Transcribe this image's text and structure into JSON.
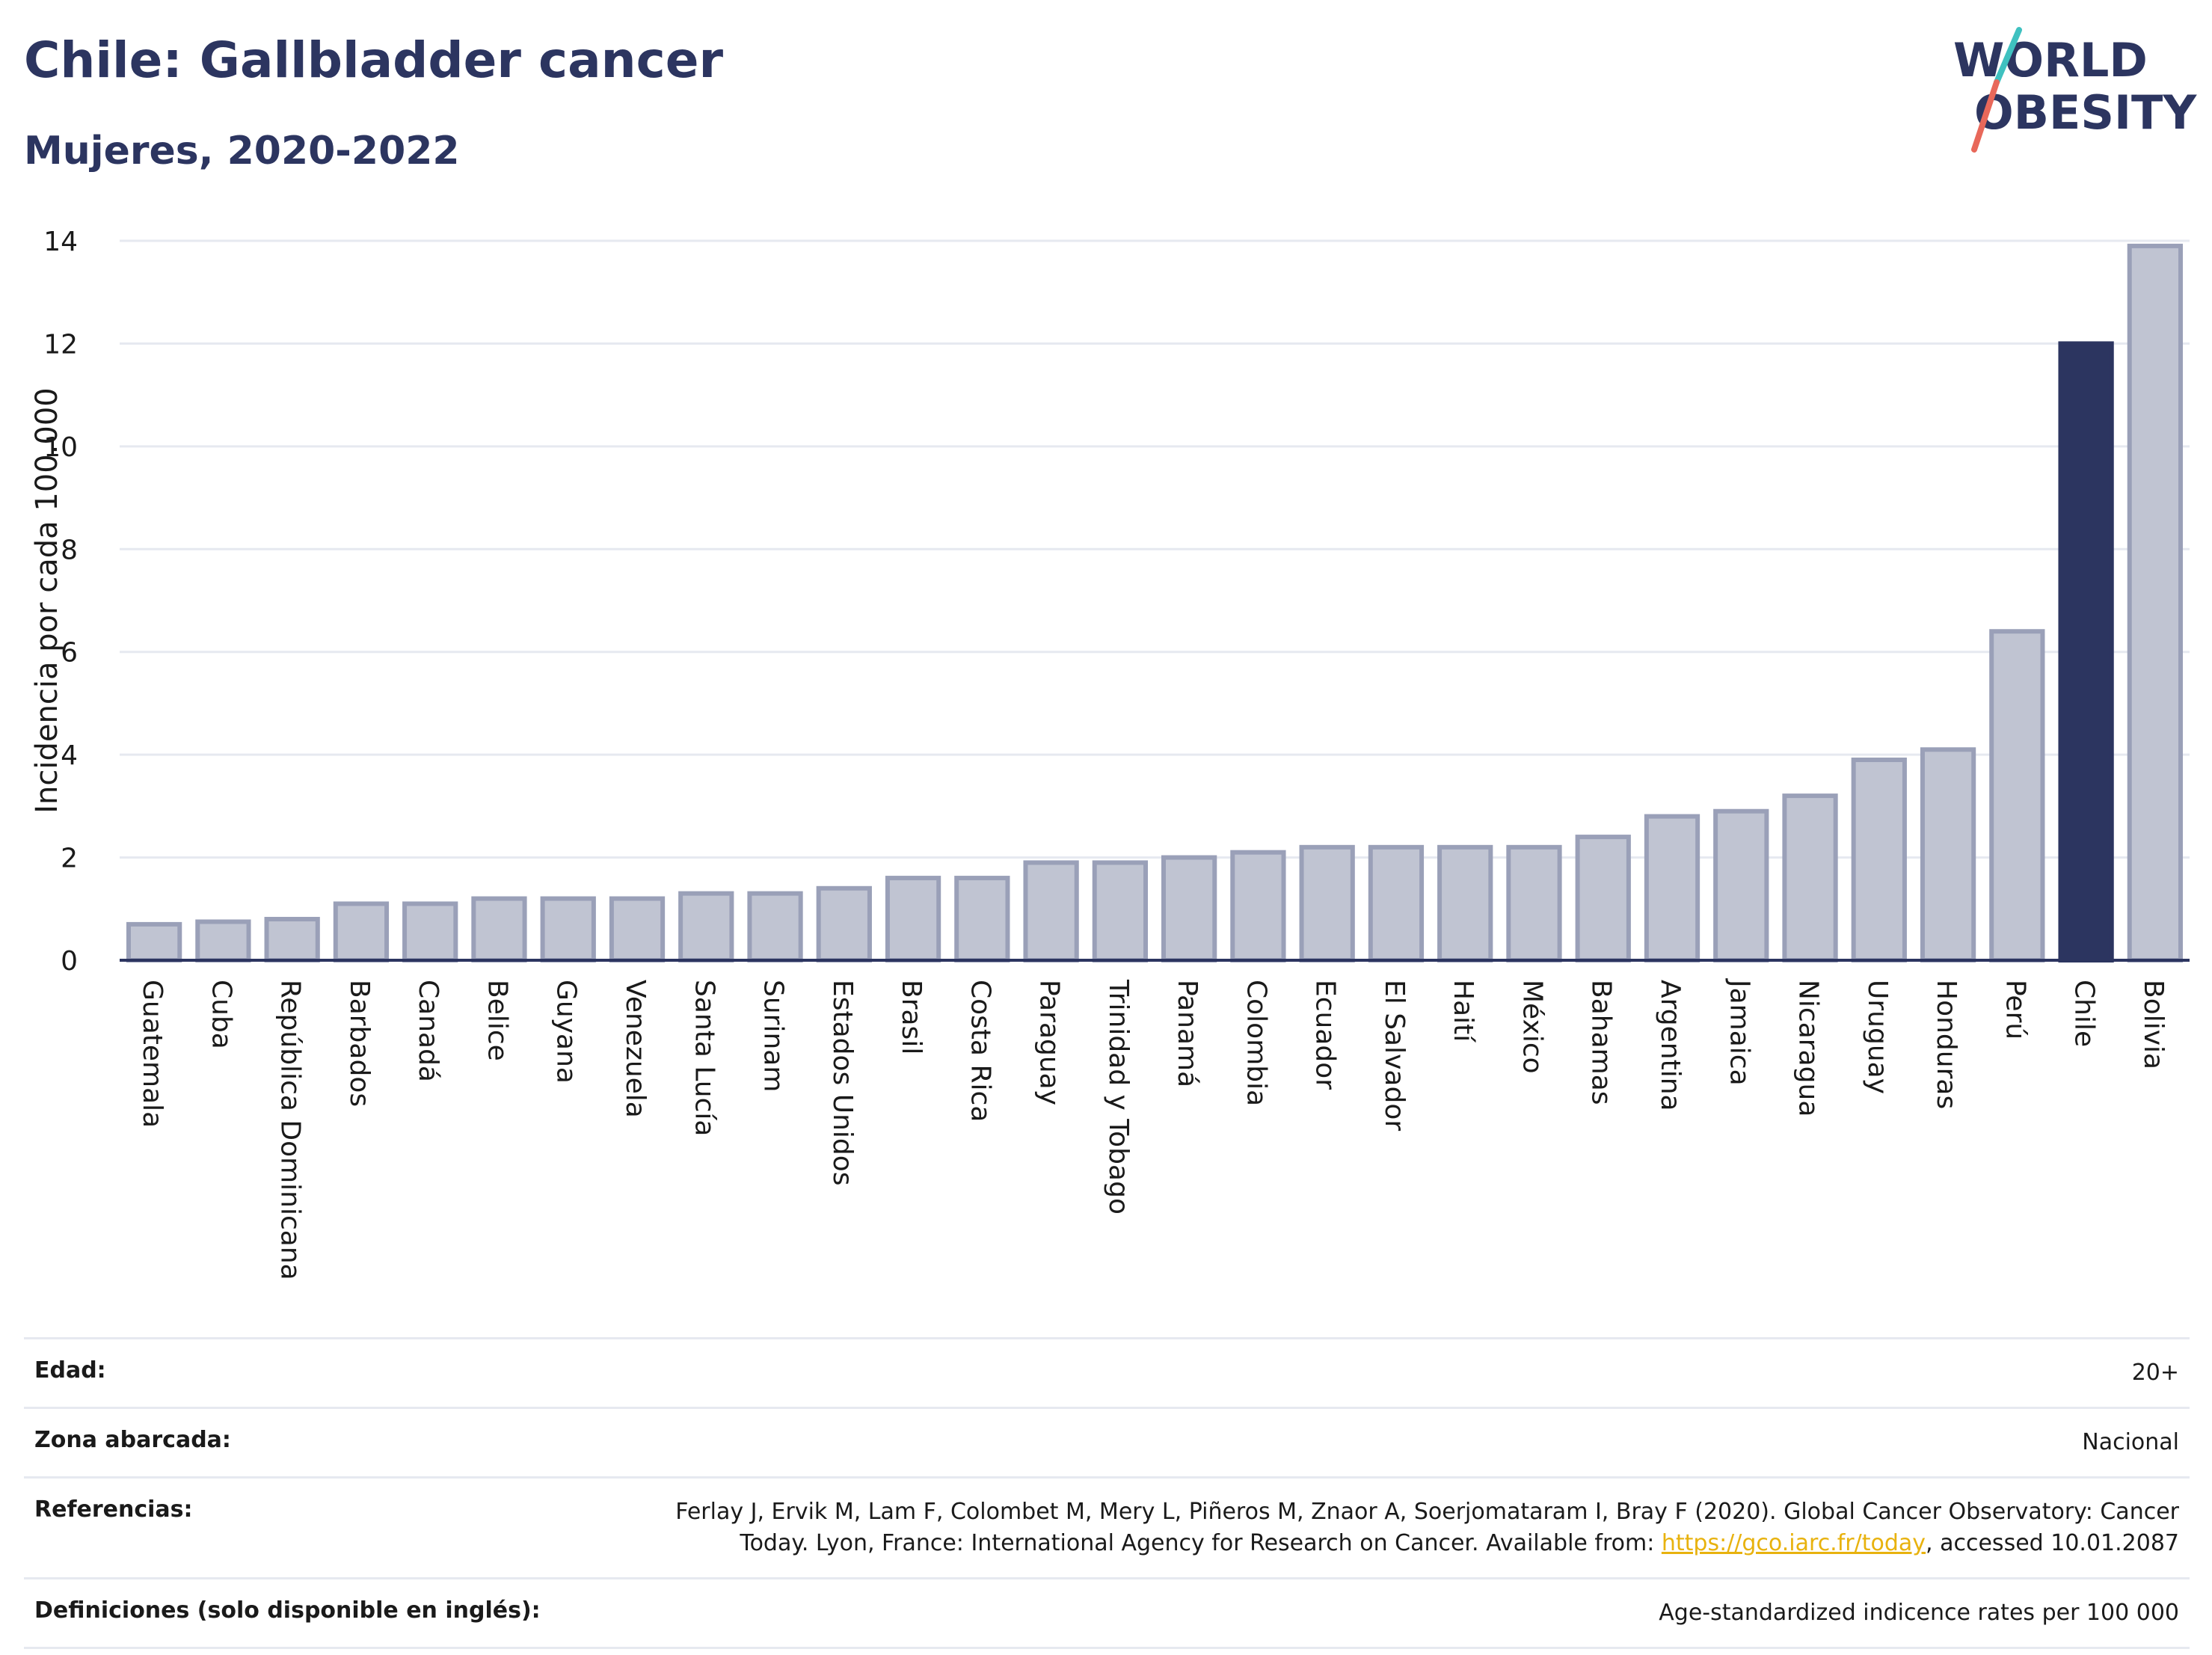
{
  "header": {
    "title": "Chile: Gallbladder cancer",
    "subtitle": "Mujeres, 2020-2022"
  },
  "logo": {
    "line1": "WORLD",
    "line2": "OBESITY",
    "slash_colors": [
      "#3fc1c0",
      "#e8685a"
    ]
  },
  "chart_data": {
    "type": "bar",
    "title": "",
    "ylabel": "Incidencia por cada 100.000",
    "xlabel": "",
    "ylim": [
      0,
      14
    ],
    "yticks": [
      0,
      2,
      4,
      6,
      8,
      10,
      12,
      14
    ],
    "grid": true,
    "categories": [
      "Guatemala",
      "Cuba",
      "República Dominicana",
      "Barbados",
      "Canadá",
      "Belice",
      "Guyana",
      "Venezuela",
      "Santa Lucía",
      "Surinam",
      "Estados Unidos",
      "Brasil",
      "Costa Rica",
      "Paraguay",
      "Trinidad y Tobago",
      "Panamá",
      "Colombia",
      "Ecuador",
      "El Salvador",
      "Haití",
      "México",
      "Bahamas",
      "Argentina",
      "Jamaica",
      "Nicaragua",
      "Uruguay",
      "Honduras",
      "Perú",
      "Chile",
      "Bolivia"
    ],
    "values": [
      0.7,
      0.75,
      0.8,
      1.1,
      1.1,
      1.2,
      1.2,
      1.2,
      1.3,
      1.3,
      1.4,
      1.6,
      1.6,
      1.9,
      1.9,
      2.0,
      2.1,
      2.2,
      2.2,
      2.2,
      2.2,
      2.4,
      2.8,
      2.9,
      3.2,
      3.9,
      4.1,
      6.4,
      12.0,
      13.9
    ],
    "highlight": "Chile",
    "colors": {
      "bar": "#c0c4d2",
      "bar_border": "#9aa0b8",
      "highlight": "#2c3560",
      "grid": "#e6e9f0",
      "axis": "#2c3560"
    }
  },
  "meta": {
    "rows": [
      {
        "key": "Edad:",
        "value": "20+"
      },
      {
        "key": "Zona abarcada:",
        "value": "Nacional"
      },
      {
        "key": "Referencias:",
        "value_prefix": "Ferlay J, Ervik M, Lam F, Colombet M, Mery L, Piñeros M, Znaor A, Soerjomataram I, Bray F (2020). Global Cancer Observatory: Cancer Today. Lyon, France: International Agency for Research on Cancer. Available from: ",
        "link": "https://gco.iarc.fr/today",
        "value_suffix": ", accessed 10.01.2087"
      },
      {
        "key": "Definiciones (solo disponible en inglés):",
        "value": "Age-standardized indicence rates per 100 000"
      }
    ]
  }
}
